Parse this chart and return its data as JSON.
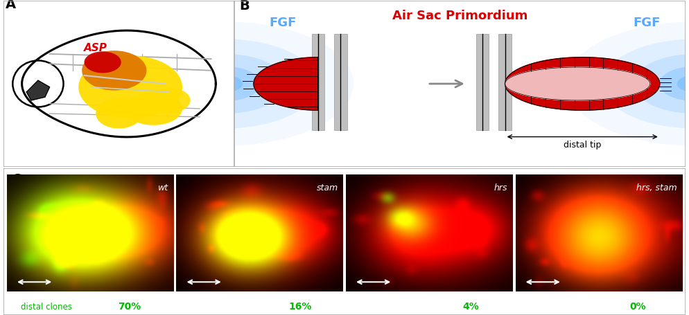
{
  "panel_label_fontsize": 14,
  "panel_label_weight": "bold",
  "asp_label": "ASP",
  "asp_label_color": "#dd0000",
  "asp_label_fontsize": 11,
  "air_sac_title": "Air Sac Primordium",
  "air_sac_title_color": "#dd0000",
  "air_sac_title_fontsize": 13,
  "fgf_color": "#55aaff",
  "fgf_fontsize": 13,
  "distal_tip_label": "distal tip",
  "red_color": "#cc0000",
  "red_dark": "#aa0000",
  "pink_color": "#f0b8b8",
  "orange_color": "#e07800",
  "yellow_color": "#ffdd00",
  "micro_labels": [
    "wt",
    "stam",
    "hrs",
    "hrs, stam"
  ],
  "percentages": [
    "70%",
    "16%",
    "4%",
    "0%"
  ],
  "distal_clones_label": "distal clones",
  "green_label_color": "#00bb00",
  "border_color": "#aaaaaa",
  "top_border": "#888888",
  "arrow_gray": "#888888"
}
